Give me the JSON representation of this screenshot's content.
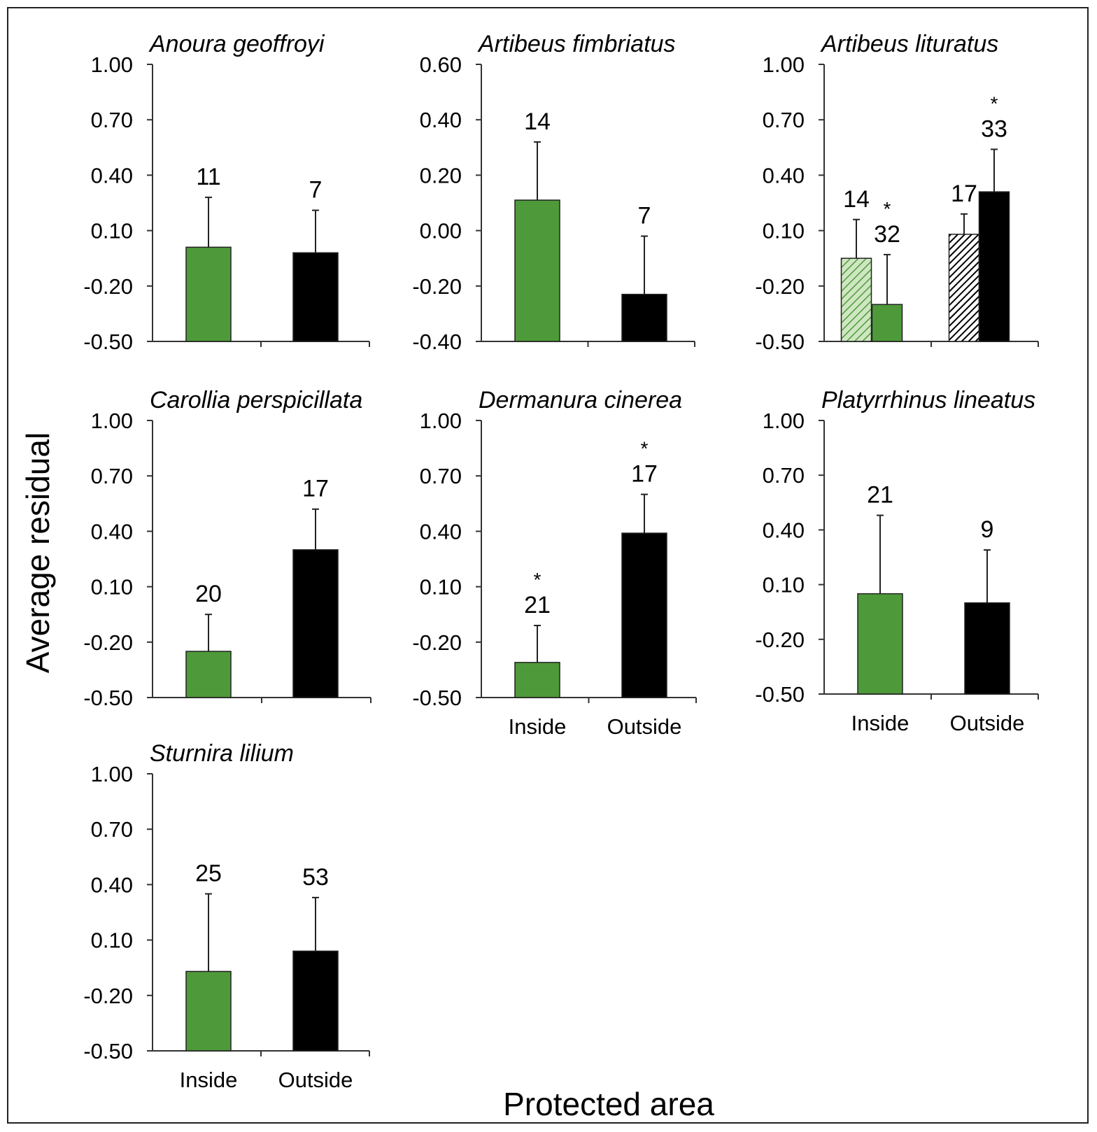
{
  "figure": {
    "ylabel": "Average residual",
    "xlabel": "Protected area"
  },
  "colors": {
    "inside": "#4e9a3a",
    "outside": "#000000",
    "axis": "#333333"
  },
  "chart_data": [
    {
      "type": "bar",
      "title": "Anoura geoffroyi",
      "ylim": [
        -0.5,
        1.0
      ],
      "yticks": [
        "1.00",
        "0.70",
        "0.40",
        "0.10",
        "-0.20",
        "-0.50"
      ],
      "categories": [],
      "bars": [
        {
          "group": "Inside",
          "value": 0.01,
          "error": 0.27,
          "n": "11",
          "sig": false,
          "style": "inside"
        },
        {
          "group": "Outside",
          "value": -0.02,
          "error": 0.23,
          "n": "7",
          "sig": false,
          "style": "outside"
        }
      ]
    },
    {
      "type": "bar",
      "title": "Artibeus fimbriatus",
      "ylim": [
        -0.4,
        0.6
      ],
      "yticks": [
        "0.60",
        "0.40",
        "0.20",
        "0.00",
        "-0.20",
        "-0.40"
      ],
      "categories": [],
      "bars": [
        {
          "group": "Inside",
          "value": 0.11,
          "error": 0.21,
          "n": "14",
          "sig": false,
          "style": "inside"
        },
        {
          "group": "Outside",
          "value": -0.23,
          "error": 0.21,
          "n": "7",
          "sig": false,
          "style": "outside"
        }
      ]
    },
    {
      "type": "bar",
      "title": "Artibeus lituratus",
      "ylim": [
        -0.5,
        1.0
      ],
      "yticks": [
        "1.00",
        "0.70",
        "0.40",
        "0.10",
        "-0.20",
        "-0.50"
      ],
      "categories": [],
      "bars": [
        {
          "group": "Inside",
          "value": -0.05,
          "error": 0.21,
          "n": "14",
          "sig": false,
          "style": "inside-hatched"
        },
        {
          "group": "Inside",
          "value": -0.3,
          "error": 0.27,
          "n": "32",
          "sig": true,
          "style": "inside"
        },
        {
          "group": "Outside",
          "value": 0.08,
          "error": 0.11,
          "n": "17",
          "sig": false,
          "style": "outside-hatched"
        },
        {
          "group": "Outside",
          "value": 0.31,
          "error": 0.23,
          "n": "33",
          "sig": true,
          "style": "outside"
        }
      ]
    },
    {
      "type": "bar",
      "title": "Carollia perspicillata",
      "ylim": [
        -0.5,
        1.0
      ],
      "yticks": [
        "1.00",
        "0.70",
        "0.40",
        "0.10",
        "-0.20",
        "-0.50"
      ],
      "categories": [],
      "bars": [
        {
          "group": "Inside",
          "value": -0.25,
          "error": 0.2,
          "n": "20",
          "sig": false,
          "style": "inside"
        },
        {
          "group": "Outside",
          "value": 0.3,
          "error": 0.22,
          "n": "17",
          "sig": false,
          "style": "outside"
        }
      ]
    },
    {
      "type": "bar",
      "title": "Dermanura cinerea",
      "ylim": [
        -0.5,
        1.0
      ],
      "yticks": [
        "1.00",
        "0.70",
        "0.40",
        "0.10",
        "-0.20",
        "-0.50"
      ],
      "categories": [
        "Inside",
        "Outside"
      ],
      "bars": [
        {
          "group": "Inside",
          "value": -0.31,
          "error": 0.2,
          "n": "21",
          "sig": true,
          "style": "inside"
        },
        {
          "group": "Outside",
          "value": 0.39,
          "error": 0.21,
          "n": "17",
          "sig": true,
          "style": "outside"
        }
      ]
    },
    {
      "type": "bar",
      "title": "Platyrrhinus lineatus",
      "ylim": [
        -0.5,
        1.0
      ],
      "yticks": [
        "1.00",
        "0.70",
        "0.40",
        "0.10",
        "-0.20",
        "-0.50"
      ],
      "categories": [
        "Inside",
        "Outside"
      ],
      "bars": [
        {
          "group": "Inside",
          "value": 0.05,
          "error": 0.43,
          "n": "21",
          "sig": false,
          "style": "inside"
        },
        {
          "group": "Outside",
          "value": 0.0,
          "error": 0.29,
          "n": "9",
          "sig": false,
          "style": "outside"
        }
      ]
    },
    {
      "type": "bar",
      "title": "Sturnira lilium",
      "ylim": [
        -0.5,
        1.0
      ],
      "yticks": [
        "1.00",
        "0.70",
        "0.40",
        "0.10",
        "-0.20",
        "-0.50"
      ],
      "categories": [
        "Inside",
        "Outside"
      ],
      "bars": [
        {
          "group": "Inside",
          "value": -0.07,
          "error": 0.42,
          "n": "25",
          "sig": false,
          "style": "inside"
        },
        {
          "group": "Outside",
          "value": 0.04,
          "error": 0.29,
          "n": "53",
          "sig": false,
          "style": "outside"
        }
      ]
    }
  ]
}
